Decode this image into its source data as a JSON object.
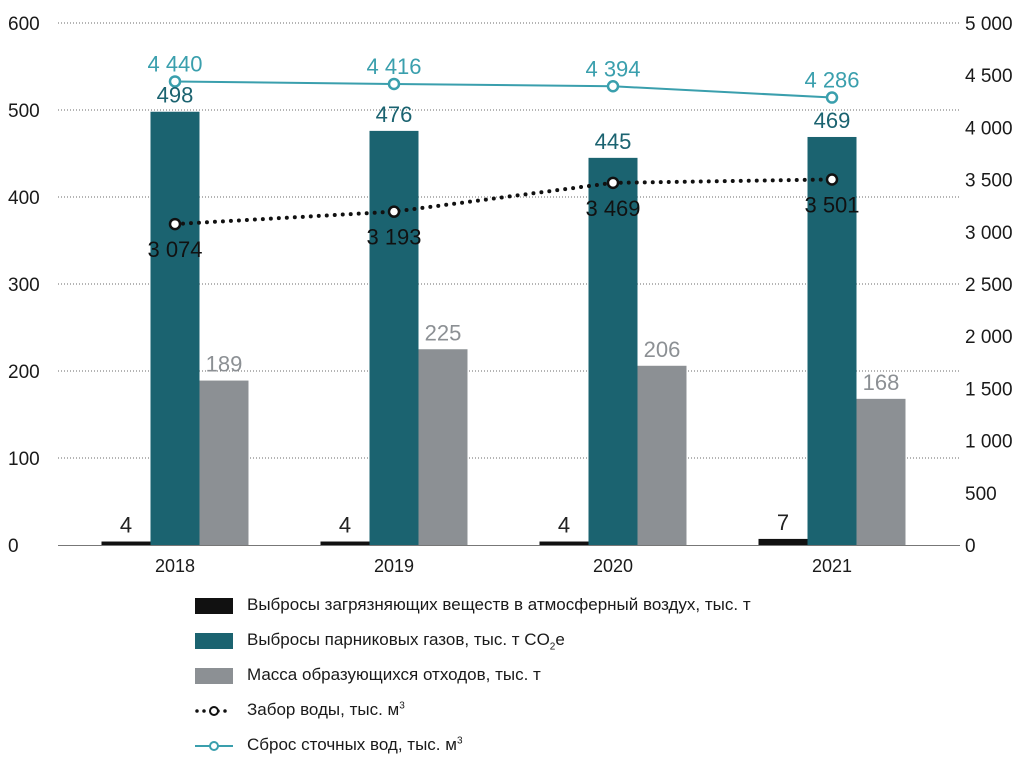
{
  "chart_data": {
    "type": "bar",
    "categories": [
      "2018",
      "2019",
      "2020",
      "2021"
    ],
    "left_axis": {
      "ylim": [
        0,
        600
      ],
      "ticks": [
        0,
        100,
        200,
        300,
        400,
        500,
        600
      ],
      "tick_labels": [
        "0",
        "100",
        "200",
        "300",
        "400",
        "500",
        "600"
      ]
    },
    "right_axis": {
      "ylim": [
        0,
        5000
      ],
      "ticks": [
        0,
        500,
        1000,
        1500,
        2000,
        2500,
        3000,
        3500,
        4000,
        4500,
        5000
      ],
      "tick_labels": [
        "0",
        "500",
        "1 000",
        "1 500",
        "2 000",
        "2 500",
        "3 000",
        "3 500",
        "4 000",
        "4 500",
        "5 000"
      ]
    },
    "grid": "horizontal dotted",
    "legend_placement": "bottom",
    "series": [
      {
        "name": "Выбросы загрязняющих веществ в атмосферный воздух, тыс. т",
        "kind": "bar",
        "axis": "left",
        "color": "#111111",
        "label_color": "#222222",
        "values": [
          4,
          4,
          4,
          7
        ],
        "labels": [
          "4",
          "4",
          "4",
          "7"
        ]
      },
      {
        "name": "Выбросы парниковых газов, тыс. т CO2e",
        "kind": "bar",
        "axis": "left",
        "color": "#1b6370",
        "label_color": "#1b6370",
        "values": [
          498,
          476,
          445,
          469
        ],
        "labels": [
          "498",
          "476",
          "445",
          "469"
        ]
      },
      {
        "name": "Масса образующихся отходов, тыс. т",
        "kind": "bar",
        "axis": "left",
        "color": "#8c9094",
        "label_color": "#8c9094",
        "values": [
          189,
          225,
          206,
          168
        ],
        "labels": [
          "189",
          "225",
          "206",
          "168"
        ]
      },
      {
        "name": "Забор воды, тыс. м3",
        "kind": "line-dotted",
        "axis": "right",
        "color": "#111111",
        "label_color": "#111111",
        "values": [
          3074,
          3193,
          3469,
          3501
        ],
        "labels": [
          "3 074",
          "3 193",
          "3 469",
          "3 501"
        ]
      },
      {
        "name": "Сброс сточных вод, тыс. м3",
        "kind": "line",
        "axis": "right",
        "color": "#3a9fad",
        "label_color": "#3a9fad",
        "values": [
          4440,
          4416,
          4394,
          4286
        ],
        "labels": [
          "4 440",
          "4 416",
          "4 394",
          "4 286"
        ]
      }
    ]
  },
  "legend": [
    {
      "key": "bar",
      "color": "#111111",
      "text": "Выбросы загрязняющих веществ в атмосферный воздух, тыс. т",
      "suffix_sub": "",
      "tail": "",
      "suffix_sup": ""
    },
    {
      "key": "bar",
      "color": "#1b6370",
      "text": "Выбросы парниковых газов, тыс. т CO",
      "suffix_sub": "2",
      "tail": "e",
      "suffix_sup": ""
    },
    {
      "key": "bar",
      "color": "#8c9094",
      "text": "Масса образующихся отходов, тыс. т",
      "suffix_sub": "",
      "tail": "",
      "suffix_sup": ""
    },
    {
      "key": "dotted",
      "color": "#111111",
      "text": "Забор воды, тыс. м",
      "suffix_sub": "",
      "tail": "",
      "suffix_sup": "3"
    },
    {
      "key": "line",
      "color": "#3a9fad",
      "text": "Сброс сточных вод, тыс. м",
      "suffix_sub": "",
      "tail": "",
      "suffix_sup": "3"
    }
  ]
}
